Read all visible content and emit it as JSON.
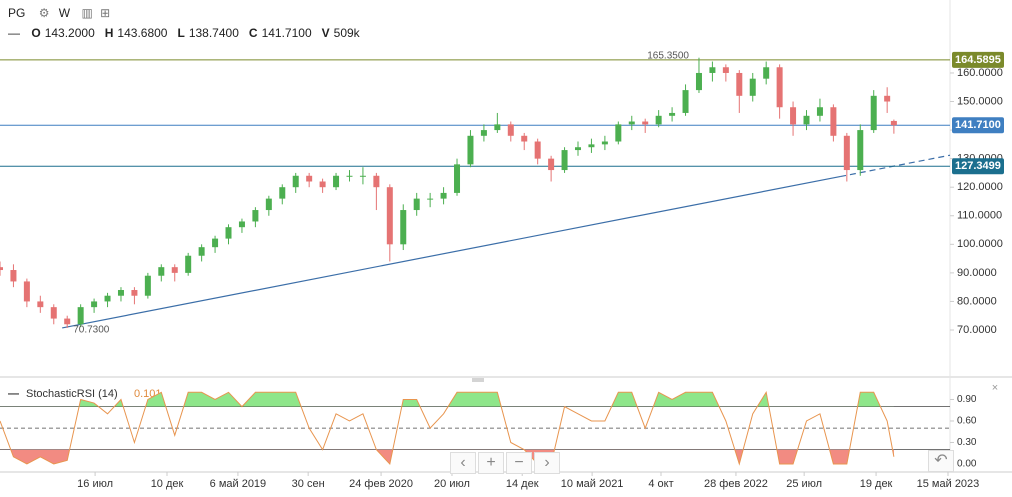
{
  "toolbar": {
    "symbol": "PG",
    "interval": "W",
    "ohlc": [
      {
        "key": "O",
        "value": "143.2000"
      },
      {
        "key": "H",
        "value": "143.6800"
      },
      {
        "key": "L",
        "value": "138.7400"
      },
      {
        "key": "C",
        "value": "141.7100"
      },
      {
        "key": "V",
        "value": "509k"
      }
    ]
  },
  "chart_data": [
    {
      "type": "candlestick",
      "up_color": "#4caf50",
      "down_color": "#e57373",
      "xlim": [
        0,
        282.7
      ],
      "ylim": [
        54.24,
        185.55
      ],
      "yticks": [
        {
          "value": 70,
          "label": "70.0000"
        },
        {
          "value": 80,
          "label": "80.0000"
        },
        {
          "value": 90,
          "label": "90.0000"
        },
        {
          "value": 100,
          "label": "100.0000"
        },
        {
          "value": 110,
          "label": "110.0000"
        },
        {
          "value": 120,
          "label": "120.0000"
        },
        {
          "value": 130,
          "label": "130.0000"
        },
        {
          "value": 140,
          "label": "140.0000"
        },
        {
          "value": 150,
          "label": "150.0000"
        },
        {
          "value": 160,
          "label": "160.0000"
        }
      ],
      "x": [
        0,
        4,
        8,
        12,
        16,
        20,
        24,
        28,
        32,
        36,
        40,
        44,
        48,
        52,
        56,
        60,
        64,
        68,
        72,
        76,
        80,
        84,
        88,
        92,
        96,
        100,
        104,
        108,
        112,
        116,
        120,
        124,
        128,
        132,
        136,
        140,
        144,
        148,
        152,
        156,
        160,
        164,
        168,
        172,
        176,
        180,
        184,
        188,
        192,
        196,
        200,
        204,
        208,
        212,
        216,
        220,
        224,
        228,
        232,
        236,
        240,
        244,
        248,
        252,
        256,
        260,
        264,
        266
      ],
      "ohlc": [
        [
          92,
          94,
          89,
          91
        ],
        [
          91,
          93,
          85,
          87
        ],
        [
          87,
          88,
          78,
          80
        ],
        [
          80,
          82,
          76,
          78
        ],
        [
          78,
          79,
          72,
          74
        ],
        [
          74,
          75,
          70.73,
          72
        ],
        [
          72,
          79,
          71,
          78
        ],
        [
          78,
          81,
          76,
          80
        ],
        [
          80,
          83,
          78,
          82
        ],
        [
          82,
          85,
          80,
          84
        ],
        [
          84,
          85,
          79,
          82
        ],
        [
          82,
          90,
          81,
          89
        ],
        [
          89,
          93,
          87,
          92
        ],
        [
          92,
          93,
          87,
          90
        ],
        [
          90,
          97,
          89,
          96
        ],
        [
          96,
          100,
          94,
          99
        ],
        [
          99,
          103,
          97,
          102
        ],
        [
          102,
          107,
          100,
          106
        ],
        [
          106,
          109,
          104,
          108
        ],
        [
          108,
          113,
          106,
          112
        ],
        [
          112,
          117,
          110,
          116
        ],
        [
          116,
          121,
          114,
          120
        ],
        [
          120,
          125,
          118,
          124
        ],
        [
          124,
          125,
          120,
          122
        ],
        [
          122,
          123,
          118,
          120
        ],
        [
          120,
          125,
          119,
          124
        ],
        [
          124,
          126,
          122,
          124
        ],
        [
          124,
          127,
          121,
          124
        ],
        [
          124,
          125,
          112,
          120
        ],
        [
          120,
          121,
          94,
          100
        ],
        [
          100,
          114,
          98,
          112
        ],
        [
          112,
          118,
          110,
          116
        ],
        [
          116,
          118,
          113,
          116
        ],
        [
          116,
          120,
          114,
          118
        ],
        [
          118,
          130,
          117,
          128
        ],
        [
          128,
          140,
          127,
          138
        ],
        [
          138,
          142,
          136,
          140
        ],
        [
          140,
          146,
          139,
          142
        ],
        [
          142,
          143,
          136,
          138
        ],
        [
          138,
          139,
          133,
          136
        ],
        [
          136,
          137,
          128,
          130
        ],
        [
          130,
          131,
          122,
          126
        ],
        [
          126,
          134,
          125,
          133
        ],
        [
          133,
          136,
          131,
          134
        ],
        [
          134,
          137,
          132,
          135
        ],
        [
          135,
          138,
          133,
          136
        ],
        [
          136,
          143,
          135,
          142
        ],
        [
          142,
          145,
          140,
          143
        ],
        [
          143,
          144,
          139,
          142
        ],
        [
          142,
          147,
          141,
          145
        ],
        [
          145,
          148,
          143,
          146
        ],
        [
          146,
          156,
          145,
          154
        ],
        [
          154,
          165.35,
          153,
          160
        ],
        [
          160,
          164,
          157,
          162
        ],
        [
          162,
          163,
          157,
          160
        ],
        [
          160,
          161,
          146,
          152
        ],
        [
          152,
          160,
          150,
          158
        ],
        [
          158,
          164,
          156,
          162
        ],
        [
          162,
          163,
          144,
          148
        ],
        [
          148,
          150,
          138,
          142
        ],
        [
          142,
          147,
          140,
          145
        ],
        [
          145,
          151,
          143,
          148
        ],
        [
          148,
          149,
          136,
          138
        ],
        [
          138,
          139,
          122,
          126
        ],
        [
          126,
          142,
          124,
          140
        ],
        [
          140,
          154,
          139,
          152
        ],
        [
          152,
          155,
          146,
          150
        ],
        [
          143.2,
          143.68,
          138.74,
          141.71
        ]
      ],
      "price_lines": [
        {
          "value": 164.5895,
          "color": "#7b8a2b"
        },
        {
          "value": 141.71,
          "label": "141.7100",
          "color": "#3f7fc1"
        },
        {
          "value": 127.3499,
          "color": "#1b6f8e"
        }
      ],
      "trendline": {
        "x": [
          18.5,
          250,
          282.7
        ],
        "y": [
          70.73,
          123.72,
          131.2
        ],
        "color": "#3b6ea8"
      },
      "high_label": {
        "x": 208,
        "value": 165.35,
        "label": "165.3500"
      },
      "low_label": {
        "x": 20,
        "value": 70.73,
        "label": "70.7300"
      }
    },
    {
      "type": "line",
      "title": "StochasticRSI (14)",
      "color": "#e8954f",
      "over_color": "#8ee68a",
      "under_color": "#f28b82",
      "xlim": [
        0,
        282.7
      ],
      "ylim": [
        -0.084,
        1.102
      ],
      "yticks": [
        {
          "value": 0,
          "label": "0.00"
        },
        {
          "value": 0.3,
          "label": "0.30"
        },
        {
          "value": 0.6,
          "label": "0.60"
        },
        {
          "value": 0.9,
          "label": "0.90"
        }
      ],
      "levels": [
        0.8,
        0.5,
        0.2
      ],
      "xticks": [
        {
          "value": 28.3,
          "label": "16 июл"
        },
        {
          "value": 49.7,
          "label": "10 дек"
        },
        {
          "value": 70.8,
          "label": "6 май 2019"
        },
        {
          "value": 91.7,
          "label": "30 сен"
        },
        {
          "value": 113.4,
          "label": "24 фев 2020"
        },
        {
          "value": 134.5,
          "label": "20 июл"
        },
        {
          "value": 155.4,
          "label": "14 дек"
        },
        {
          "value": 176.2,
          "label": "10 май 2021"
        },
        {
          "value": 196.7,
          "label": "4 окт"
        },
        {
          "value": 219,
          "label": "28 фев 2022"
        },
        {
          "value": 239.3,
          "label": "25 июл"
        },
        {
          "value": 260.7,
          "label": "19 дек"
        },
        {
          "value": 282.1,
          "label": "15 май 2023"
        }
      ],
      "x": [
        0,
        4,
        8,
        12,
        16,
        20,
        24,
        28,
        32,
        36,
        40,
        44,
        48,
        52,
        56,
        60,
        64,
        68,
        72,
        76,
        80,
        84,
        88,
        92,
        96,
        100,
        104,
        108,
        112,
        116,
        120,
        124,
        128,
        132,
        136,
        140,
        144,
        148,
        152,
        156,
        160,
        164,
        168,
        172,
        176,
        180,
        184,
        188,
        192,
        196,
        200,
        204,
        208,
        212,
        216,
        220,
        224,
        228,
        232,
        236,
        240,
        244,
        248,
        252,
        256,
        260,
        264,
        266
      ],
      "values": [
        0.6,
        0.1,
        0,
        0.1,
        0,
        0.05,
        0.9,
        0.85,
        0.7,
        0.9,
        0.3,
        0.9,
        1,
        0.4,
        1,
        1,
        0.9,
        1,
        0.8,
        1,
        1,
        1,
        1,
        0.5,
        0.2,
        0.7,
        0.6,
        0.7,
        0.2,
        0,
        0.9,
        0.9,
        0.5,
        0.7,
        1,
        1,
        1,
        1,
        0.3,
        0.2,
        0,
        0,
        0.8,
        0.7,
        0.6,
        0.6,
        1,
        1,
        0.5,
        1,
        0.9,
        1,
        1,
        1,
        0.6,
        0,
        0.7,
        1,
        0,
        0,
        0.6,
        0.7,
        0,
        0,
        1,
        1,
        0.6,
        0.101
      ]
    }
  ]
}
